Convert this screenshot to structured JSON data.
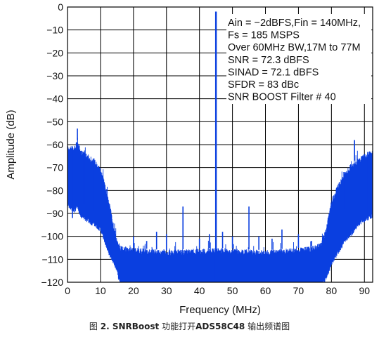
{
  "chart_data": {
    "type": "line",
    "title": "",
    "xlabel": "Frequency (MHz)",
    "ylabel": "Amplitude (dB)",
    "xlim": [
      0,
      92.5
    ],
    "ylim": [
      -120,
      0
    ],
    "xticks": [
      0,
      10,
      20,
      30,
      40,
      50,
      60,
      70,
      80,
      90
    ],
    "yticks": [
      0,
      -10,
      -20,
      -30,
      -40,
      -50,
      -60,
      -70,
      -80,
      -90,
      -100,
      -110,
      -120
    ],
    "xtick_labels": [
      "0",
      "10",
      "20",
      "30",
      "40",
      "50",
      "60",
      "70",
      "80",
      "90"
    ],
    "ytick_labels": [
      "0",
      "−10",
      "−20",
      "−30",
      "−40",
      "−50",
      "−60",
      "−70",
      "−80",
      "−90",
      "−100",
      "−110",
      "−120"
    ],
    "grid": true,
    "series_color": "#0a3fe0",
    "fundamental": {
      "x": 45,
      "y": -2
    },
    "spectrum_envelope": {
      "x": [
        0,
        2,
        3,
        4,
        6,
        8,
        10,
        11,
        12,
        13,
        14,
        15,
        16,
        20,
        30,
        44,
        46,
        60,
        70,
        75,
        77,
        78,
        79,
        80,
        82,
        84,
        86,
        88,
        90,
        92.5
      ],
      "y_top": [
        -60,
        -61,
        -58,
        -62,
        -64,
        -66,
        -70,
        -75,
        -80,
        -87,
        -95,
        -101,
        -104,
        -105,
        -106,
        -105,
        -105,
        -106,
        -105,
        -104,
        -102,
        -98,
        -92,
        -84,
        -77,
        -72,
        -68,
        -66,
        -64,
        -62
      ],
      "y_bottom": [
        -85,
        -88,
        -86,
        -90,
        -92,
        -94,
        -96,
        -100,
        -104,
        -108,
        -110,
        -114,
        -120,
        -120,
        -120,
        -120,
        -120,
        -120,
        -120,
        -120,
        -120,
        -118,
        -115,
        -111,
        -106,
        -101,
        -98,
        -94,
        -92,
        -90
      ]
    },
    "spurs": [
      {
        "x": 1.5,
        "y": -92
      },
      {
        "x": 3,
        "y": -53
      },
      {
        "x": 5,
        "y": -86
      },
      {
        "x": 8,
        "y": -89
      },
      {
        "x": 20,
        "y": -100
      },
      {
        "x": 24,
        "y": -102
      },
      {
        "x": 27,
        "y": -98
      },
      {
        "x": 30,
        "y": -99
      },
      {
        "x": 35,
        "y": -87
      },
      {
        "x": 40,
        "y": -101
      },
      {
        "x": 43,
        "y": -99
      },
      {
        "x": 47,
        "y": -98
      },
      {
        "x": 50,
        "y": -100
      },
      {
        "x": 55,
        "y": -87
      },
      {
        "x": 58,
        "y": -100
      },
      {
        "x": 62,
        "y": -101
      },
      {
        "x": 65,
        "y": -97
      },
      {
        "x": 70,
        "y": -99
      },
      {
        "x": 74,
        "y": -102
      },
      {
        "x": 79,
        "y": -98
      },
      {
        "x": 84,
        "y": -88
      },
      {
        "x": 87,
        "y": -58
      },
      {
        "x": 91,
        "y": -93
      }
    ],
    "annotations": [
      "Ain = −2dBFS,Fin = 140MHz,",
      " Fs = 185 MSPS",
      "Over 60MHz BW,17M to 77M",
      "SNR  = 72.3 dBFS",
      "SINAD  = 72.1 dBFS",
      "SFDR  = 83 dBc",
      "SNR BOOST Filter # 40"
    ]
  },
  "caption": {
    "figure_prefix": "图",
    "figure_number": "2. SNRBoost",
    "text_middle": "功能打开",
    "part_number": "ADS58C48",
    "text_end": "输出频谱图"
  }
}
